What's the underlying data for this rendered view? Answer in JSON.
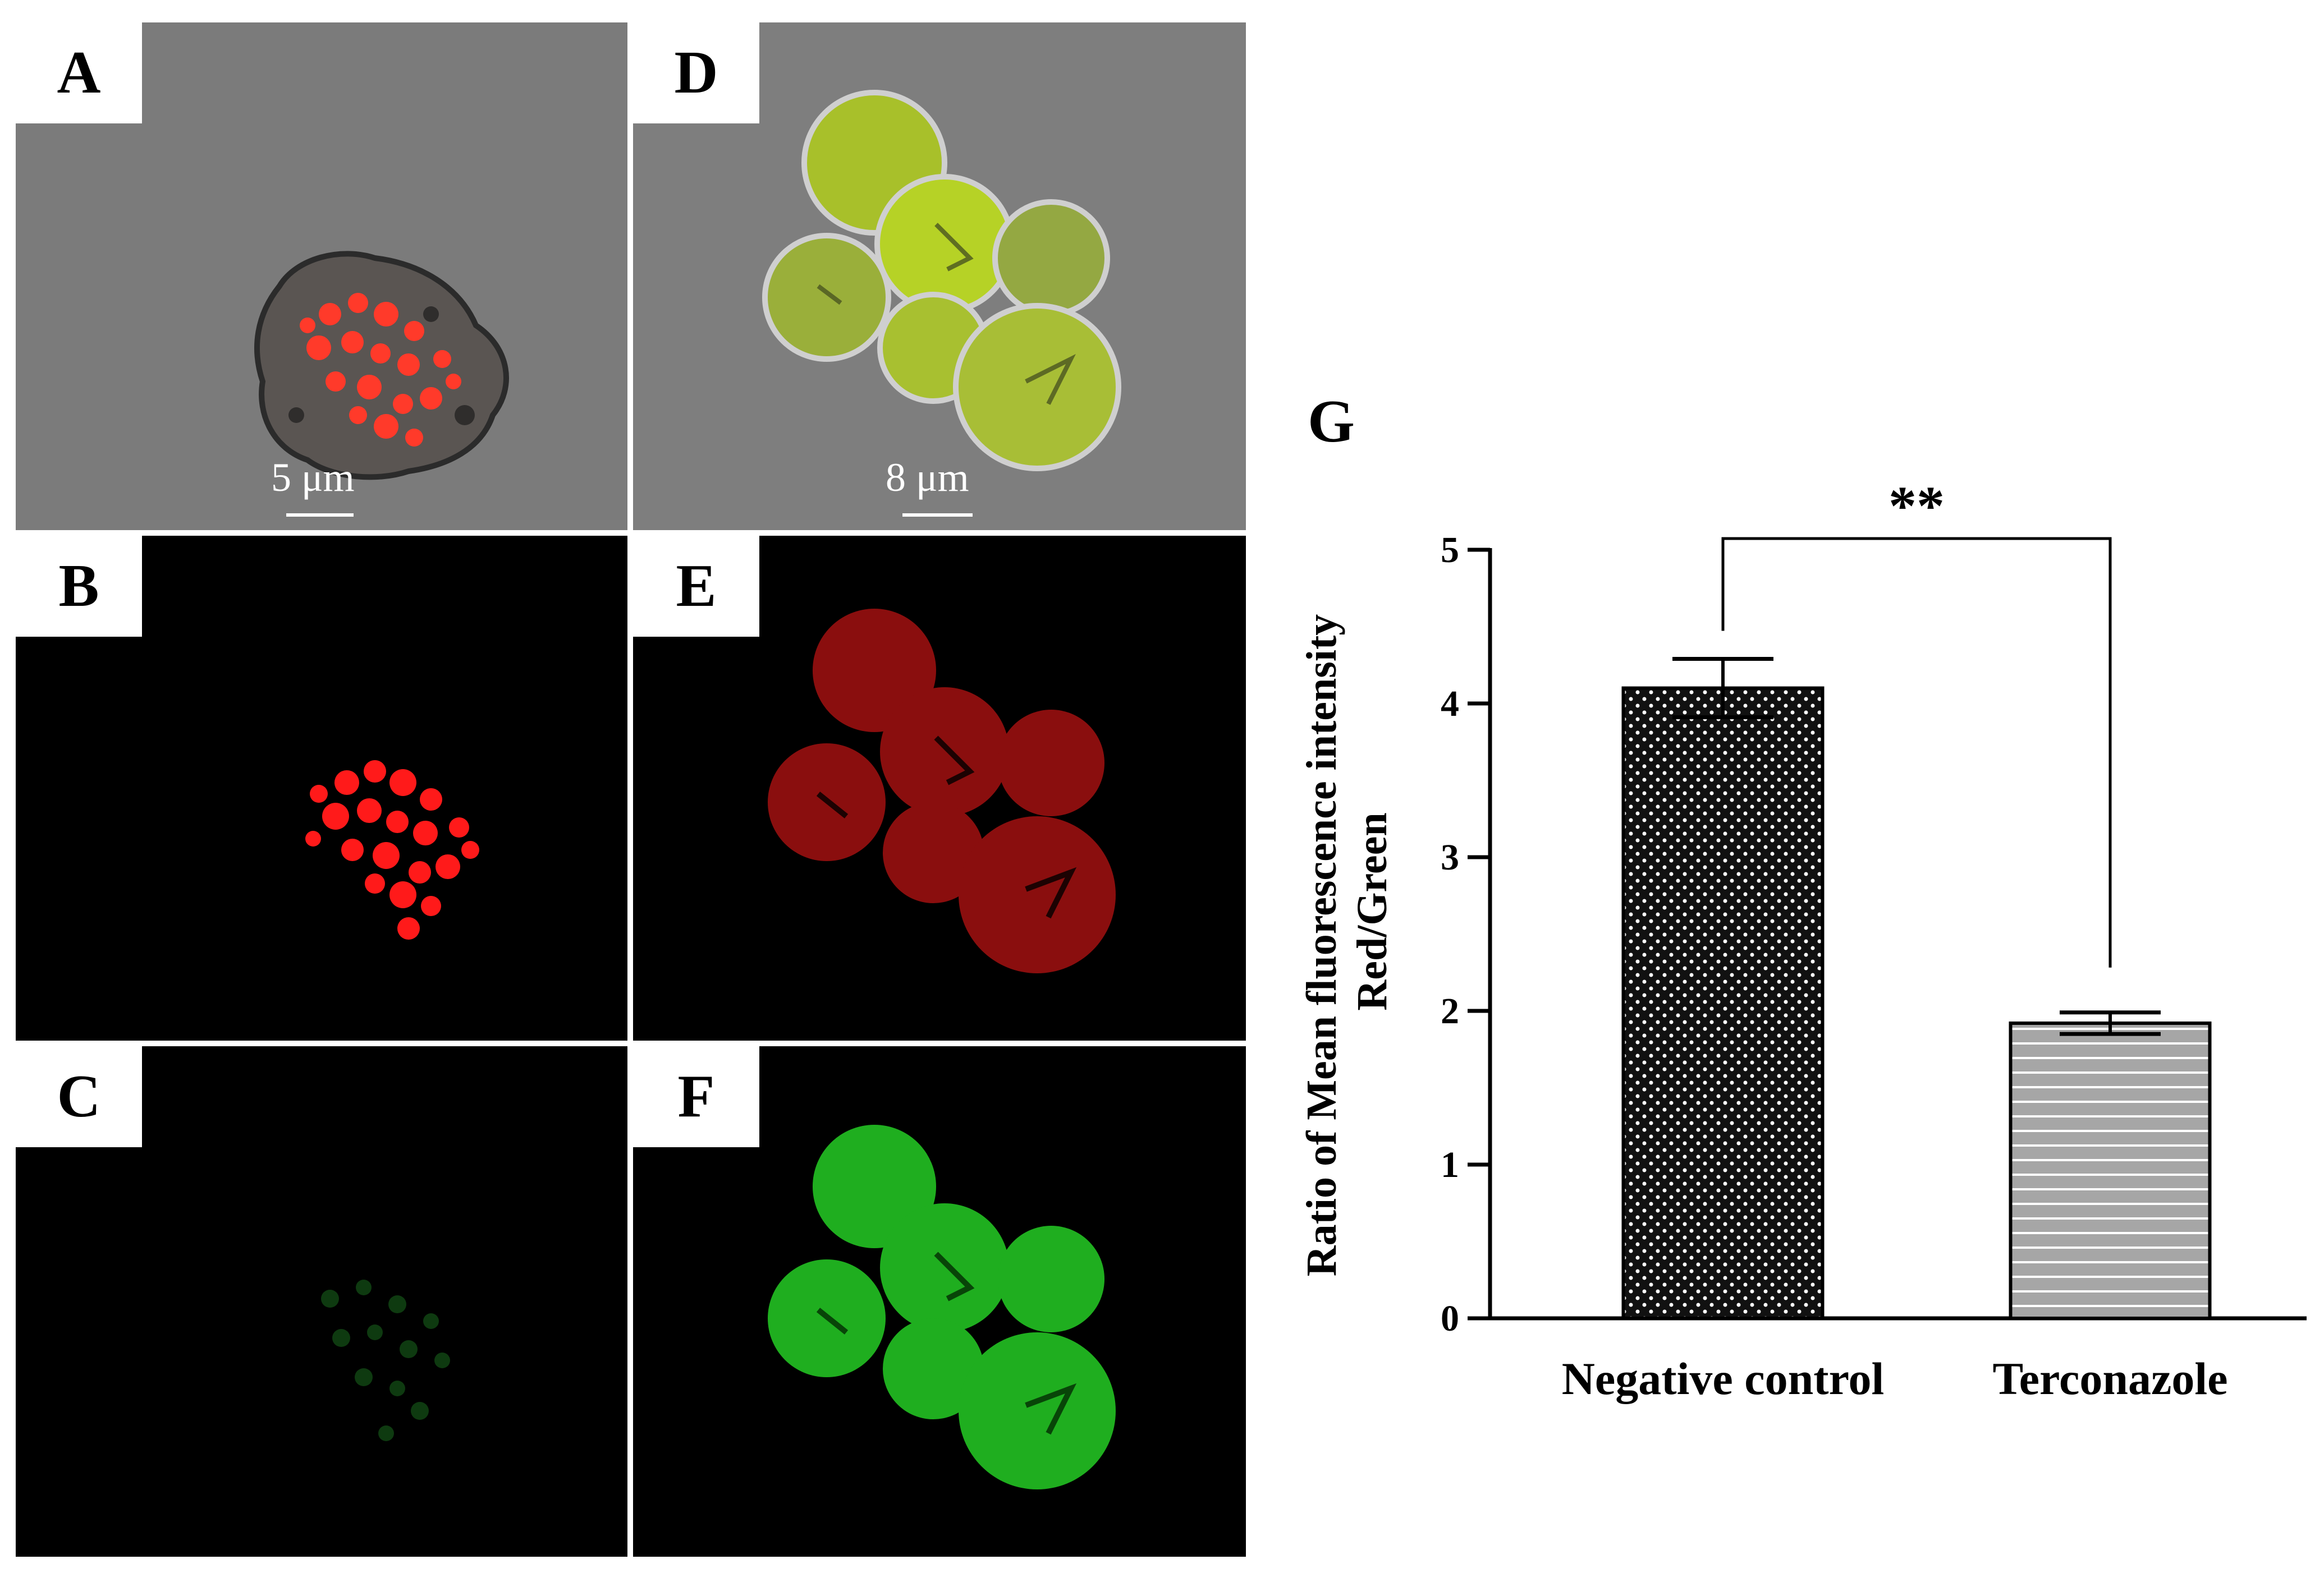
{
  "figure": {
    "panels": [
      {
        "label": "A",
        "kind": "brightfield-macrophage",
        "scale_bar": "5 μm"
      },
      {
        "label": "B",
        "kind": "red-fluorescence-macrophage",
        "scale_bar": ""
      },
      {
        "label": "C",
        "kind": "green-fluorescence-macrophage",
        "scale_bar": ""
      },
      {
        "label": "D",
        "kind": "brightfield-yeast-cluster",
        "scale_bar": "8 μm"
      },
      {
        "label": "E",
        "kind": "red-fluorescence-yeast-cluster",
        "scale_bar": ""
      },
      {
        "label": "F",
        "kind": "green-fluorescence-yeast-cluster",
        "scale_bar": ""
      }
    ],
    "chart_label": "G"
  },
  "colors": {
    "brightfield_bg": "#7a7a7a",
    "fluor_bg": "#000000",
    "red_signal": "#ff1a1a",
    "green_signal": "#22c422",
    "bar1_fill": "#111111",
    "bar2_fill": "#a6a6a6"
  },
  "chart_data": {
    "type": "bar",
    "categories": [
      "Negative control",
      "Terconazole"
    ],
    "values": [
      4.1,
      1.92
    ],
    "errors": [
      0.19,
      0.07
    ],
    "ylabel_line1": "Ratio of Mean fluorescence intensity",
    "ylabel_line2": "Red/Green",
    "ylim": [
      0,
      5
    ],
    "yticks": [
      0,
      1,
      2,
      3,
      4,
      5
    ],
    "significance": "**",
    "patterns": [
      "dots",
      "horizontal-lines"
    ]
  }
}
